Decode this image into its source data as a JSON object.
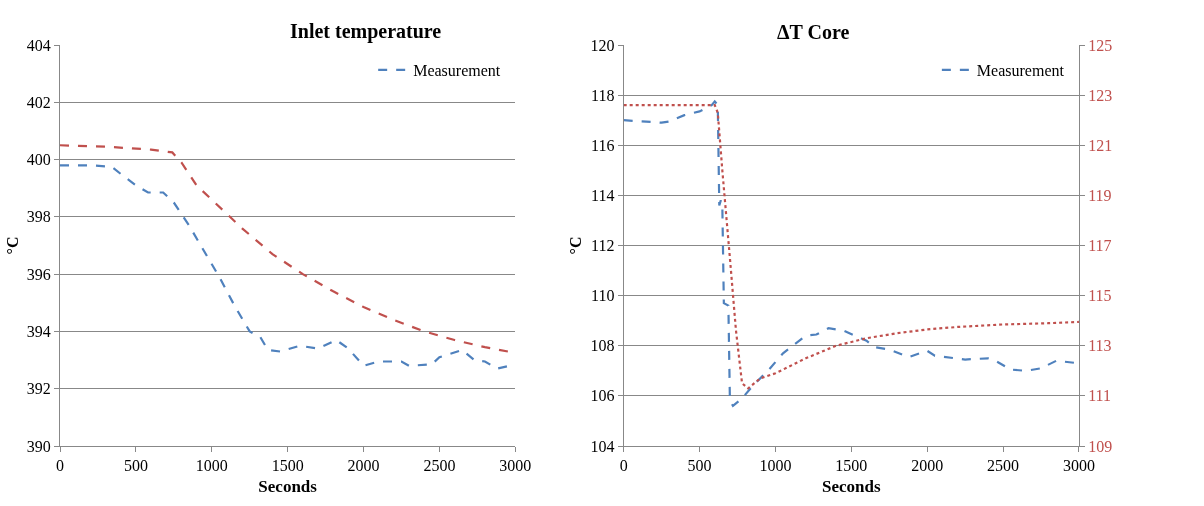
{
  "chart_data": [
    {
      "type": "line",
      "title": "Inlet temperature",
      "xlabel": "Seconds",
      "ylabel": "°C",
      "xlim": [
        0,
        3000
      ],
      "xticks": [
        0,
        500,
        1000,
        1500,
        2000,
        2500,
        3000
      ],
      "ylim": [
        390,
        404
      ],
      "yticks": [
        390,
        392,
        394,
        396,
        398,
        400,
        402,
        404
      ],
      "grid": "y",
      "legend": "top right",
      "marker": "none",
      "line_style": "dashed",
      "series": [
        {
          "name": "Measurement",
          "color": "#4f81bd",
          "x": [
            0,
            200,
            340,
            400,
            500,
            580,
            680,
            750,
            850,
            950,
            1050,
            1150,
            1250,
            1320,
            1370,
            1450,
            1580,
            1700,
            1820,
            1900,
            2000,
            2100,
            2250,
            2300,
            2450,
            2500,
            2650,
            2730,
            2800,
            2880,
            3000
          ],
          "values": [
            399.8,
            399.8,
            399.75,
            399.5,
            399.1,
            398.85,
            398.85,
            398.5,
            397.7,
            396.8,
            395.9,
            394.9,
            394,
            393.8,
            393.35,
            393.3,
            393.5,
            393.4,
            393.7,
            393.4,
            392.8,
            392.95,
            392.95,
            392.8,
            392.85,
            393.1,
            393.35,
            393,
            392.95,
            392.7,
            392.85
          ]
        },
        {
          "color": "#c0504d",
          "x": [
            0,
            300,
            600,
            740,
            800,
            900,
            1000,
            1200,
            1400,
            1600,
            1800,
            2000,
            2200,
            2400,
            2600,
            2800,
            3000
          ],
          "values": [
            400.5,
            400.45,
            400.35,
            400.25,
            399.9,
            399.1,
            398.6,
            397.6,
            396.7,
            396,
            395.4,
            394.85,
            394.4,
            394,
            393.7,
            393.45,
            393.25
          ]
        }
      ]
    },
    {
      "type": "line",
      "title": "ΔT Core",
      "xlabel": "Seconds",
      "ylabel": "°C",
      "xlim": [
        0,
        3000
      ],
      "xticks": [
        0,
        500,
        1000,
        1500,
        2000,
        2500,
        3000
      ],
      "ylim": [
        104,
        120
      ],
      "yticks": [
        104,
        106,
        108,
        110,
        112,
        114,
        116,
        118,
        120
      ],
      "y2lim": [
        109,
        125
      ],
      "y2ticks": [
        109,
        111,
        113,
        115,
        117,
        119,
        121,
        123,
        125
      ],
      "grid": "y",
      "legend": "top right",
      "marker": "none",
      "series": [
        {
          "name": "Measurement",
          "color": "#4f81bd",
          "line_style": "dashed",
          "x": [
            0,
            250,
            300,
            400,
            500,
            580,
            600,
            620,
            630,
            640,
            650,
            660,
            690,
            700,
            720,
            780,
            850,
            950,
            1050,
            1200,
            1270,
            1350,
            1450,
            1600,
            1650,
            1750,
            1880,
            2000,
            2050,
            2250,
            2400,
            2450,
            2550,
            2650,
            2750,
            2850,
            3000
          ],
          "values": [
            117,
            116.9,
            116.95,
            117.2,
            117.35,
            117.6,
            117.75,
            117.6,
            113.6,
            113.8,
            113.6,
            109.7,
            109.6,
            105.8,
            105.6,
            105.9,
            106.4,
            107,
            107.7,
            108.4,
            108.45,
            108.7,
            108.6,
            108.2,
            107.95,
            107.85,
            107.55,
            107.8,
            107.6,
            107.45,
            107.5,
            107.4,
            107.05,
            107,
            107.1,
            107.4,
            107.3
          ]
        },
        {
          "color": "#c0504d",
          "line_style": "dotted",
          "axis": "y2",
          "x": [
            0,
            600,
            620,
            650,
            700,
            740,
            780,
            820,
            900,
            1000,
            1200,
            1400,
            1600,
            1800,
            2000,
            2200,
            2500,
            2800,
            3000
          ],
          "values": [
            122.6,
            122.6,
            122.3,
            120,
            116.5,
            113.6,
            111.5,
            111.3,
            111.7,
            111.9,
            112.5,
            113,
            113.3,
            113.5,
            113.65,
            113.75,
            113.85,
            113.9,
            113.95
          ]
        }
      ]
    }
  ]
}
